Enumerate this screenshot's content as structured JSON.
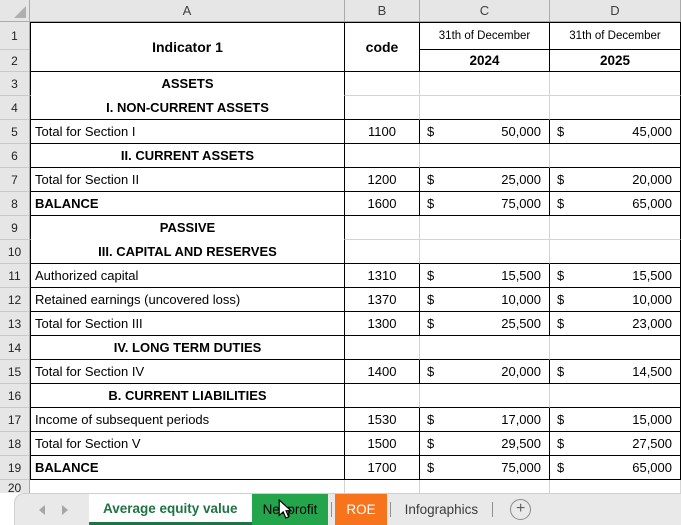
{
  "sheet": {
    "column_headers": [
      "A",
      "B",
      "C",
      "D"
    ],
    "header": {
      "row_numbers": [
        "1",
        "2"
      ],
      "indicator": "Indicator 1",
      "code": "code",
      "date_label": "31th of December",
      "years": [
        "2024",
        "2025"
      ]
    },
    "currency_symbol": "$",
    "rows": [
      {
        "n": "3",
        "kind": "section",
        "label": "ASSETS"
      },
      {
        "n": "4",
        "kind": "section",
        "label": "I. NON-CURRENT ASSETS"
      },
      {
        "n": "5",
        "kind": "data",
        "label": "Total for Section I",
        "code": "1100",
        "y2024": "50,000",
        "y2025": "45,000",
        "bold": false
      },
      {
        "n": "6",
        "kind": "section",
        "label": "II. CURRENT ASSETS"
      },
      {
        "n": "7",
        "kind": "data",
        "label": "Total for Section II",
        "code": "1200",
        "y2024": "25,000",
        "y2025": "20,000",
        "bold": false
      },
      {
        "n": "8",
        "kind": "data",
        "label": "BALANCE",
        "code": "1600",
        "y2024": "75,000",
        "y2025": "65,000",
        "bold": true
      },
      {
        "n": "9",
        "kind": "section",
        "label": "PASSIVE"
      },
      {
        "n": "10",
        "kind": "section",
        "label": "III. CAPITAL AND RESERVES"
      },
      {
        "n": "11",
        "kind": "data",
        "label": "Authorized capital",
        "code": "1310",
        "y2024": "15,500",
        "y2025": "15,500",
        "bold": false
      },
      {
        "n": "12",
        "kind": "data",
        "label": "Retained earnings (uncovered loss)",
        "code": "1370",
        "y2024": "10,000",
        "y2025": "10,000",
        "bold": false
      },
      {
        "n": "13",
        "kind": "data",
        "label": "Total for Section III",
        "code": "1300",
        "y2024": "25,500",
        "y2025": "23,000",
        "bold": false
      },
      {
        "n": "14",
        "kind": "section",
        "label": "IV. LONG TERM DUTIES"
      },
      {
        "n": "15",
        "kind": "data",
        "label": "Total for Section IV",
        "code": "1400",
        "y2024": "20,000",
        "y2025": "14,500",
        "bold": false
      },
      {
        "n": "16",
        "kind": "section",
        "label": "B. CURRENT LIABILITIES"
      },
      {
        "n": "17",
        "kind": "data",
        "label": "Income of subsequent periods",
        "code": "1530",
        "y2024": "17,000",
        "y2025": "15,000",
        "bold": false
      },
      {
        "n": "18",
        "kind": "data",
        "label": "Total for Section V",
        "code": "1500",
        "y2024": "29,500",
        "y2025": "27,500",
        "bold": false
      },
      {
        "n": "19",
        "kind": "data",
        "label": "BALANCE",
        "code": "1700",
        "y2024": "75,000",
        "y2025": "65,000",
        "bold": true
      }
    ],
    "partial_row_number": "20"
  },
  "tab_bar": {
    "tabs": [
      {
        "label": "Average equity value",
        "style": "active"
      },
      {
        "label": "Net profit",
        "style": "green"
      },
      {
        "label": "ROE",
        "style": "orange"
      },
      {
        "label": "Infographics",
        "style": "plain"
      }
    ],
    "add_sheet_glyph": "+"
  },
  "colors": {
    "active_tab_text": "#1E7343",
    "active_tab_underline": "#217346",
    "green_tab_bg": "#24A54C",
    "green_tab_text": "#000000",
    "orange_tab_bg": "#F7741C",
    "orange_tab_text": "#FFFFFF",
    "plain_tab_text": "#3C3C3C"
  }
}
